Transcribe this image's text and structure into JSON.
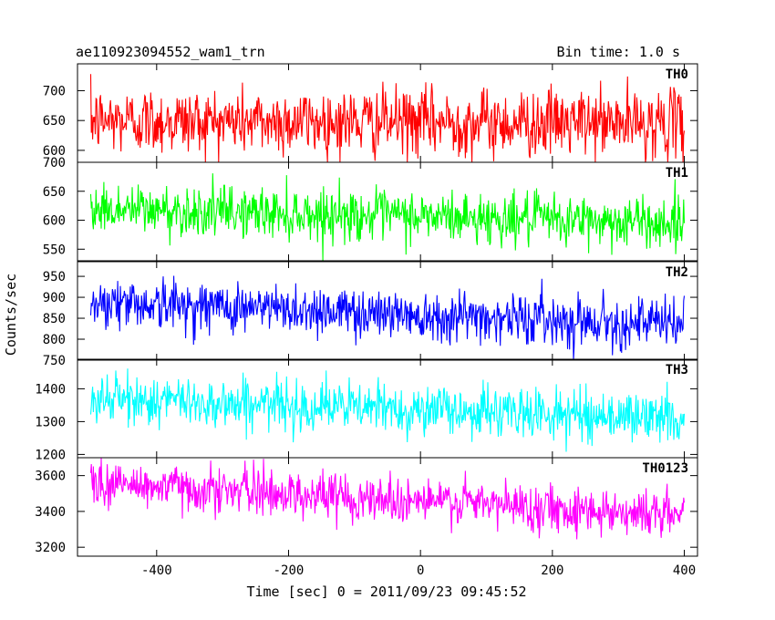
{
  "header": {
    "title": "ae110923094552_wam1_trn",
    "bin_time": "Bin time: 1.0 s"
  },
  "chart_data": {
    "type": "line",
    "ylabel": "Counts/sec",
    "xlabel": "Time [sec] 0 = 2011/09/23 09:45:52",
    "x_range": [
      -520,
      420
    ],
    "x_data_extent": [
      -500,
      400
    ],
    "x_ticks": [
      -400,
      -200,
      0,
      200,
      400
    ],
    "grid": false,
    "panels": [
      {
        "name": "TH0",
        "color": "#ff0000",
        "y_range": [
          580,
          745
        ],
        "y_ticks": [
          600,
          650,
          700
        ],
        "approx_mean_start": 650,
        "approx_mean_end": 645,
        "approx_noise_sd": 28
      },
      {
        "name": "TH1",
        "color": "#00ff00",
        "y_range": [
          530,
          700
        ],
        "y_ticks": [
          550,
          600,
          650,
          700
        ],
        "approx_mean_start": 620,
        "approx_mean_end": 595,
        "approx_noise_sd": 22
      },
      {
        "name": "TH2",
        "color": "#0000ff",
        "y_range": [
          750,
          985
        ],
        "y_ticks": [
          750,
          800,
          850,
          900,
          950
        ],
        "approx_mean_start": 890,
        "approx_mean_end": 835,
        "approx_noise_sd": 30
      },
      {
        "name": "TH3",
        "color": "#00ffff",
        "y_range": [
          1190,
          1490
        ],
        "y_ticks": [
          1200,
          1300,
          1400
        ],
        "approx_mean_start": 1370,
        "approx_mean_end": 1310,
        "approx_noise_sd": 38
      },
      {
        "name": "TH0123",
        "color": "#ff00ff",
        "y_range": [
          3150,
          3700
        ],
        "y_ticks": [
          3200,
          3400,
          3600
        ],
        "approx_mean_start": 3560,
        "approx_mean_end": 3380,
        "approx_noise_sd": 65
      }
    ]
  }
}
